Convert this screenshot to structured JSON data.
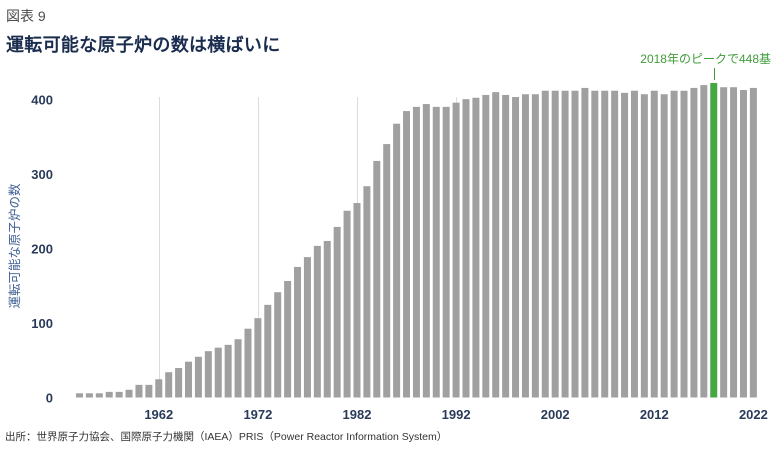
{
  "figure_label": "図表 9",
  "source": "出所：世界原子力協会、国際原子力機関（IAEA）PRIS（Power Reactor Information System）",
  "colors": {
    "bar": "#a0a0a0",
    "highlight": "#45a843",
    "annotation": "#3f9c3a",
    "gridline": "#dcdcdc",
    "title": "#1b2d4f",
    "axis_text": "#2a3b59",
    "ylabel": "#3e5f94"
  },
  "chart_data": {
    "type": "bar",
    "title": "運転可能な原子炉の数は横ばいに",
    "ylabel": "運転可能な原子炉の数",
    "x": [
      1954,
      1955,
      1956,
      1957,
      1958,
      1959,
      1960,
      1961,
      1962,
      1963,
      1964,
      1965,
      1966,
      1967,
      1968,
      1969,
      1970,
      1971,
      1972,
      1973,
      1974,
      1975,
      1976,
      1977,
      1978,
      1979,
      1980,
      1981,
      1982,
      1983,
      1984,
      1985,
      1986,
      1987,
      1988,
      1989,
      1990,
      1991,
      1992,
      1993,
      1994,
      1995,
      1996,
      1997,
      1998,
      1999,
      2000,
      2001,
      2002,
      2003,
      2004,
      2005,
      2006,
      2007,
      2008,
      2009,
      2010,
      2011,
      2012,
      2013,
      2014,
      2015,
      2016,
      2017,
      2018,
      2019,
      2020,
      2021,
      2022
    ],
    "values": [
      6,
      6,
      6,
      8,
      8,
      11,
      18,
      18,
      26,
      36,
      42,
      51,
      58,
      66,
      71,
      75,
      83,
      98,
      113,
      132,
      150,
      166,
      186,
      200,
      216,
      223,
      243,
      266,
      277,
      301,
      337,
      361,
      390,
      408,
      414,
      418,
      414,
      414,
      420,
      425,
      427,
      431,
      435,
      431,
      428,
      432,
      432,
      437,
      437,
      437,
      437,
      441,
      437,
      437,
      437,
      434,
      437,
      432,
      437,
      432,
      437,
      437,
      441,
      445,
      448,
      442,
      442,
      438,
      441
    ],
    "xticks": [
      "1962",
      "1972",
      "1982",
      "1992",
      "2002",
      "2012",
      "2022"
    ],
    "yticks": [
      "0",
      "100",
      "200",
      "300",
      "400"
    ],
    "xlim": [
      1954,
      2022
    ],
    "ylim": [
      0,
      450
    ],
    "grid": {
      "vertical": true,
      "horizontal": false
    },
    "highlight": {
      "x": 2018,
      "value": 448,
      "label": "2018年のピークで448基"
    }
  }
}
